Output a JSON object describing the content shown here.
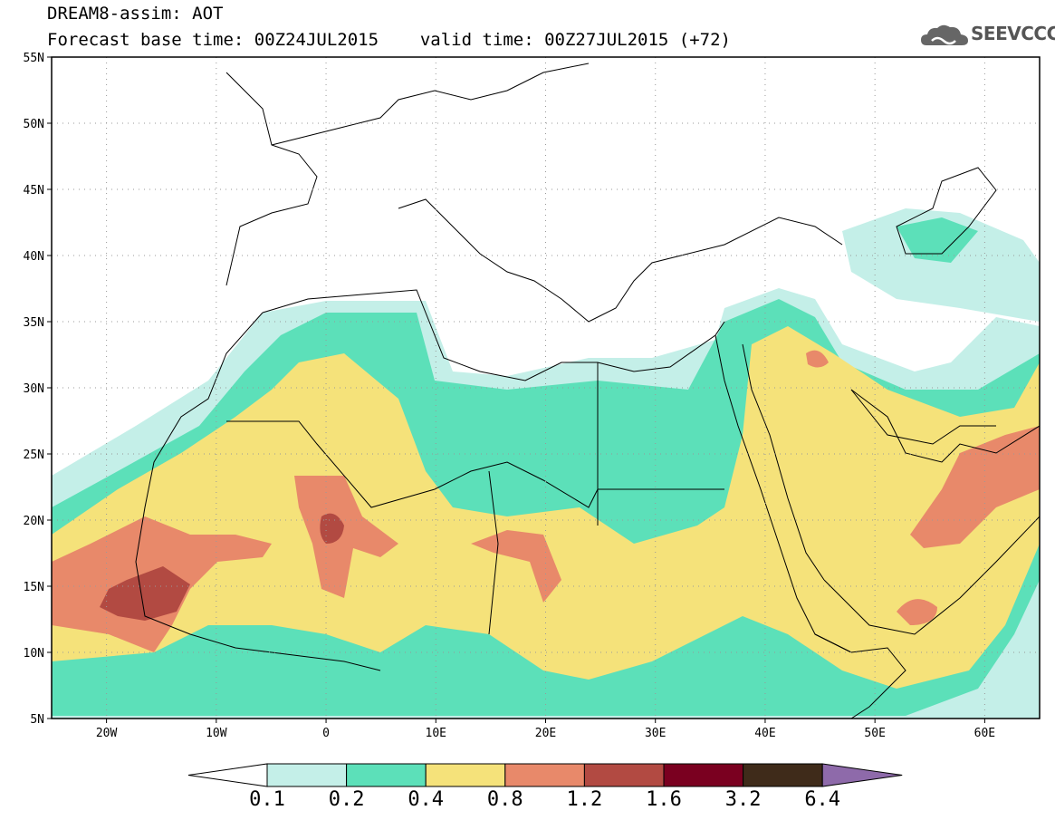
{
  "header": {
    "title": "DREAM8-assim: AOT",
    "base_time_label": "Forecast base time: 00Z24JUL2015",
    "valid_time_label": "valid time: 00Z27JUL2015 (+72)",
    "logo_text": "SEEVCCC",
    "logo_icon": "cloud-icon"
  },
  "map": {
    "variable": "AOT",
    "lon_range": [
      -25,
      65
    ],
    "lat_range": [
      5,
      55
    ],
    "lat_ticks": [
      "5N",
      "10N",
      "15N",
      "20N",
      "25N",
      "30N",
      "35N",
      "40N",
      "45N",
      "50N",
      "55N"
    ],
    "lon_ticks": [
      "20W",
      "10W",
      "0",
      "10E",
      "20E",
      "30E",
      "40E",
      "50E",
      "60E"
    ],
    "grid": true
  },
  "colorbar": {
    "levels": [
      "0.1",
      "0.2",
      "0.4",
      "0.8",
      "1.2",
      "1.6",
      "3.2",
      "6.4"
    ],
    "colors": [
      "#ffffff",
      "#c4efe8",
      "#5ce0b9",
      "#f5e27a",
      "#e8896a",
      "#b24a42",
      "#7a0020",
      "#3f2b1a",
      "#8e6aaa"
    ]
  }
}
